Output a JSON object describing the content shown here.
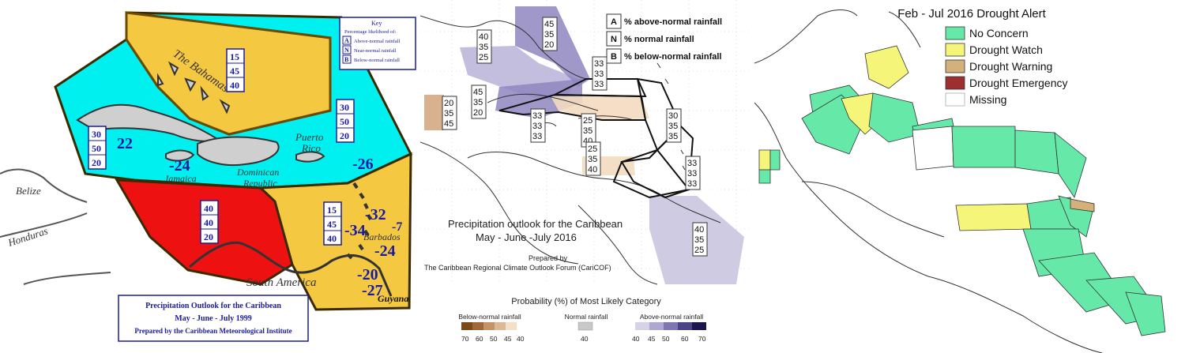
{
  "panel1": {
    "key": {
      "title": "Key",
      "subtitle": "Percentage likelihood of:",
      "rows": [
        {
          "letter": "A",
          "text": "Above-normal rainfall"
        },
        {
          "letter": "N",
          "text": "Near-normal rainfall"
        },
        {
          "letter": "B",
          "text": "Below-normal rainfall"
        }
      ]
    },
    "place_labels": {
      "bahamas": "The Bahamas",
      "belize": "Belize",
      "honduras": "Honduras",
      "jamaica": "Jamaica",
      "dominican": "Dominican",
      "republic": "Republic",
      "puerto": "Puerto",
      "rico": "Rico",
      "barbados": "Barbados",
      "south_america": "South America",
      "guyana": "Guyana"
    },
    "probability_boxes": [
      {
        "id": "bahamas",
        "values": [
          "15",
          "45",
          "40"
        ]
      },
      {
        "id": "east",
        "values": [
          "30",
          "50",
          "20"
        ]
      },
      {
        "id": "west",
        "values": [
          "30",
          "50",
          "20"
        ]
      },
      {
        "id": "south",
        "values": [
          "40",
          "40",
          "20"
        ]
      },
      {
        "id": "lesser_antilles",
        "values": [
          "15",
          "45",
          "40"
        ]
      }
    ],
    "isotherm_labels": [
      "22",
      "-24",
      "-26",
      "-32",
      "-7",
      "-34",
      "-24",
      "-20",
      "-27"
    ],
    "caption": {
      "line1": "Precipitation Outlook for the Caribbean",
      "line2": "May - June - July 1999",
      "line3": "Prepared by the Caribbean Meteorological Institute"
    },
    "colors": {
      "ocean_zone": "#00f0f0",
      "yellow_zone": "#f5c842",
      "red_zone": "#ee1111",
      "text_blue": "#1a1aa0"
    }
  },
  "panel2": {
    "legend": [
      {
        "letter": "A",
        "text": "% above-normal rainfall"
      },
      {
        "letter": "N",
        "text": "% normal rainfall"
      },
      {
        "letter": "B",
        "text": "% below-normal rainfall"
      }
    ],
    "boxes": [
      {
        "id": "bahamas_w",
        "values": [
          "40",
          "35",
          "25"
        ]
      },
      {
        "id": "bahamas_e",
        "values": [
          "45",
          "35",
          "20"
        ]
      },
      {
        "id": "cuba_w",
        "values": [
          "45",
          "35",
          "20"
        ]
      },
      {
        "id": "belize",
        "values": [
          "20",
          "35",
          "45"
        ]
      },
      {
        "id": "jamaica",
        "values": [
          "33",
          "33",
          "33"
        ]
      },
      {
        "id": "hispaniola",
        "values": [
          "33",
          "33",
          "33"
        ]
      },
      {
        "id": "central",
        "values": [
          "25",
          "35",
          "40"
        ]
      },
      {
        "id": "leeward",
        "values": [
          "30",
          "35",
          "35"
        ]
      },
      {
        "id": "south_central",
        "values": [
          "25",
          "35",
          "40"
        ]
      },
      {
        "id": "windward",
        "values": [
          "33",
          "33",
          "33"
        ]
      },
      {
        "id": "guianas",
        "values": [
          "40",
          "35",
          "25"
        ]
      }
    ],
    "title_line1": "Precipitation outlook for the Caribbean",
    "title_line2": "May - June -July 2016",
    "prepared_by": "Prepared by",
    "organization": "The Caribbean Regional Climate Outlook Forum (CariCOF)",
    "scale_title": "Probability (%) of Most Likely Category",
    "scale_groups": [
      {
        "label": "Below-normal rainfall",
        "ticks": [
          "70",
          "60",
          "50",
          "45",
          "40"
        ],
        "colors": [
          "#7a4a1a",
          "#a0683a",
          "#c49468",
          "#dcb894",
          "#f3e0c8"
        ]
      },
      {
        "label": "Normal rainfall",
        "ticks": [
          "40"
        ],
        "colors": [
          "#c8c8c8"
        ]
      },
      {
        "label": "Above-normal rainfall",
        "ticks": [
          "40",
          "45",
          "50",
          "60",
          "70"
        ],
        "colors": [
          "#d6d3e8",
          "#aea8d0",
          "#7e76b0",
          "#4a4486",
          "#1a164e"
        ]
      }
    ]
  },
  "panel3": {
    "title": "Feb - Jul 2016 Drought Alert",
    "legend": [
      {
        "label": "No Concern",
        "color": "#66e8a8"
      },
      {
        "label": "Drought Watch",
        "color": "#f5f57a"
      },
      {
        "label": "Drought Warning",
        "color": "#d4b07a"
      },
      {
        "label": "Drought Emergency",
        "color": "#9e2f2f"
      },
      {
        "label": "Missing",
        "color": "#ffffff"
      }
    ]
  }
}
